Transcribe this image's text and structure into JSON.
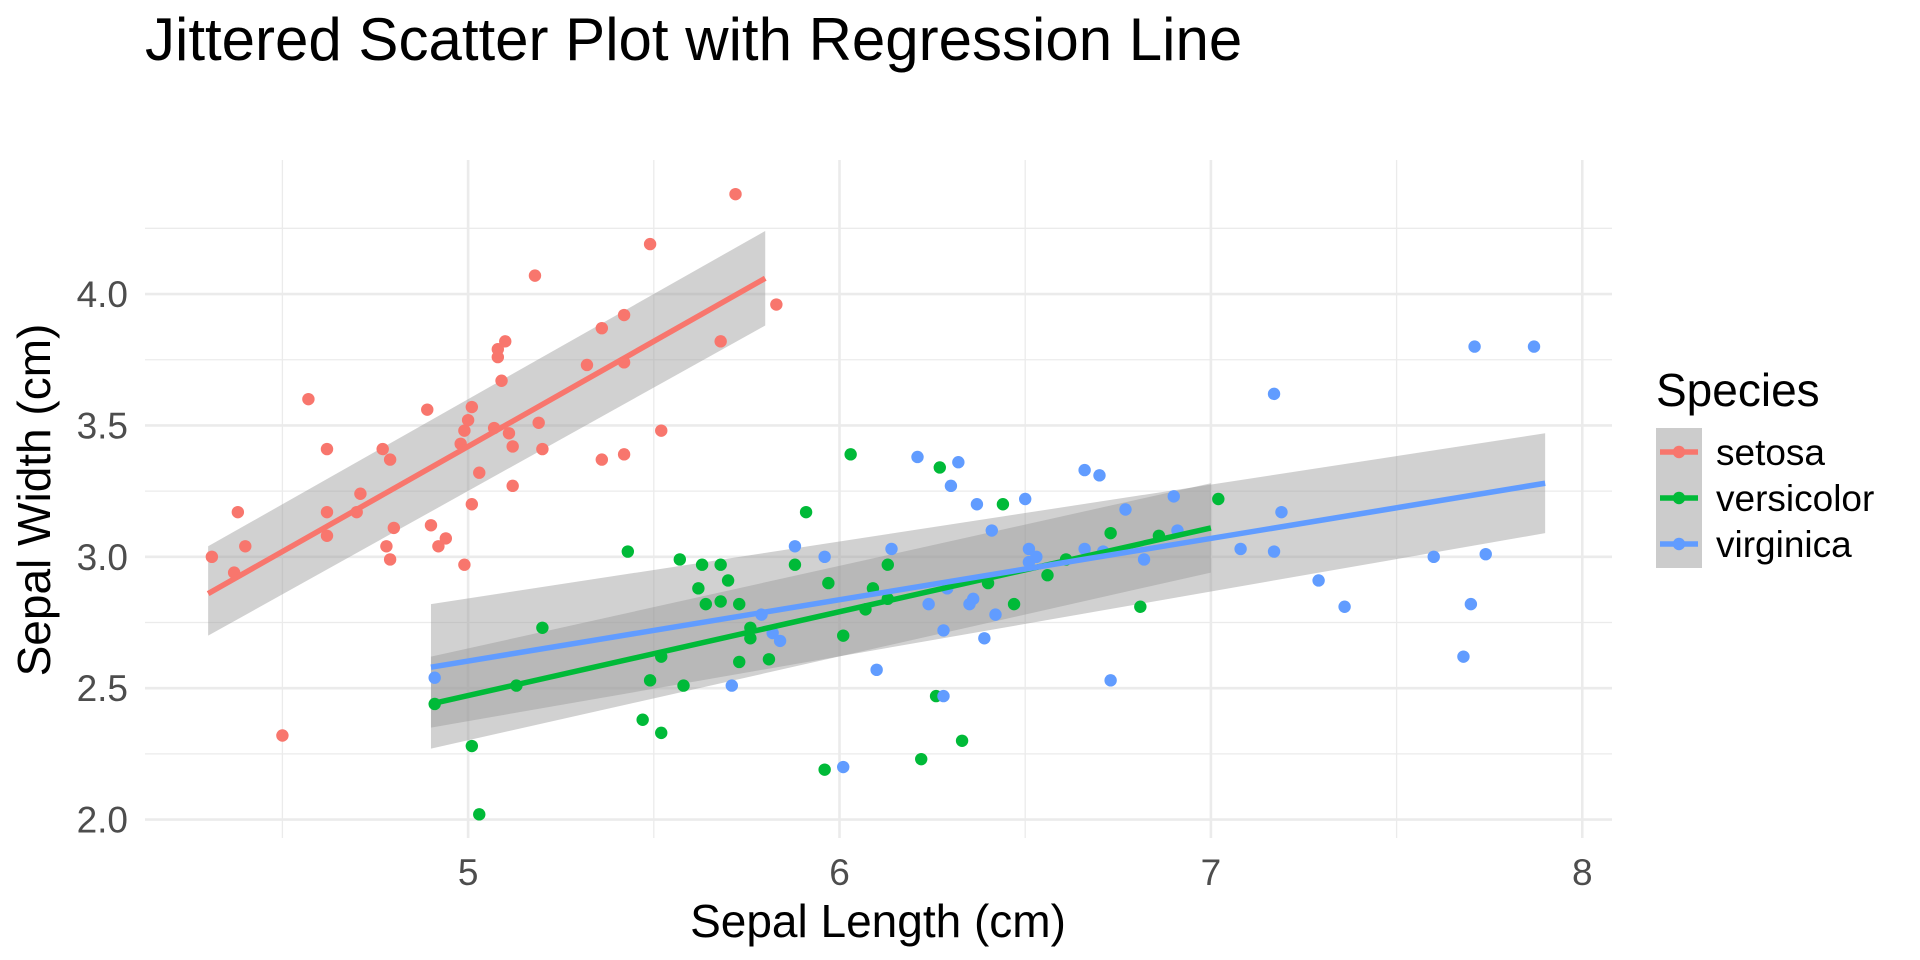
{
  "chart_data": {
    "type": "scatter",
    "title": "Jittered Scatter Plot with Regression Line",
    "xlabel": "Sepal Length (cm)",
    "ylabel": "Sepal Width (cm)",
    "xlim": [
      4.13,
      8.08
    ],
    "ylim": [
      1.93,
      4.51
    ],
    "x_ticks": [
      5,
      6,
      7,
      8
    ],
    "x_tick_labels": [
      "5",
      "6",
      "7",
      "8"
    ],
    "y_ticks": [
      2.0,
      2.5,
      3.0,
      3.5,
      4.0
    ],
    "y_tick_labels": [
      "2.0",
      "2.5",
      "3.0",
      "3.5",
      "4.0"
    ],
    "x_minor_ticks": [
      4.5,
      5.5,
      6.5,
      7.5
    ],
    "y_minor_ticks": [
      2.25,
      2.75,
      3.25,
      3.75,
      4.25
    ],
    "grid": true,
    "legend": {
      "title": "Species",
      "position": "right",
      "entries": [
        "setosa",
        "versicolor",
        "virginica"
      ]
    },
    "series": [
      {
        "name": "setosa",
        "color": "#F8766D",
        "points": [
          [
            4.31,
            3.0
          ],
          [
            4.37,
            2.94
          ],
          [
            4.38,
            3.17
          ],
          [
            4.4,
            3.04
          ],
          [
            4.5,
            2.32
          ],
          [
            4.57,
            3.6
          ],
          [
            4.62,
            3.08
          ],
          [
            4.62,
            3.17
          ],
          [
            4.62,
            3.41
          ],
          [
            4.7,
            3.17
          ],
          [
            4.71,
            3.24
          ],
          [
            4.77,
            3.41
          ],
          [
            4.78,
            3.04
          ],
          [
            4.79,
            2.99
          ],
          [
            4.79,
            3.37
          ],
          [
            4.8,
            3.11
          ],
          [
            4.89,
            3.56
          ],
          [
            4.9,
            3.12
          ],
          [
            4.92,
            3.04
          ],
          [
            4.94,
            3.07
          ],
          [
            4.98,
            3.43
          ],
          [
            4.99,
            3.48
          ],
          [
            4.99,
            2.97
          ],
          [
            5.0,
            3.52
          ],
          [
            5.01,
            3.2
          ],
          [
            5.01,
            3.57
          ],
          [
            5.03,
            3.32
          ],
          [
            5.07,
            3.49
          ],
          [
            5.08,
            3.76
          ],
          [
            5.08,
            3.79
          ],
          [
            5.09,
            3.67
          ],
          [
            5.1,
            3.82
          ],
          [
            5.11,
            3.47
          ],
          [
            5.12,
            3.42
          ],
          [
            5.12,
            3.27
          ],
          [
            5.18,
            4.07
          ],
          [
            5.19,
            3.51
          ],
          [
            5.2,
            3.41
          ],
          [
            5.32,
            3.73
          ],
          [
            5.36,
            3.87
          ],
          [
            5.36,
            3.37
          ],
          [
            5.42,
            3.92
          ],
          [
            5.42,
            3.74
          ],
          [
            5.42,
            3.39
          ],
          [
            5.49,
            4.19
          ],
          [
            5.52,
            3.48
          ],
          [
            5.68,
            3.82
          ],
          [
            5.72,
            4.38
          ],
          [
            5.83,
            3.96
          ]
        ],
        "regression": {
          "x": [
            4.3,
            5.8
          ],
          "y": [
            2.86,
            4.06
          ],
          "ci_lower": [
            2.7,
            3.88
          ],
          "ci_upper": [
            3.04,
            4.24
          ]
        }
      },
      {
        "name": "versicolor",
        "color": "#00BA38",
        "points": [
          [
            4.91,
            2.44
          ],
          [
            5.01,
            2.28
          ],
          [
            5.03,
            2.02
          ],
          [
            5.13,
            2.51
          ],
          [
            5.2,
            2.73
          ],
          [
            5.43,
            3.02
          ],
          [
            5.47,
            2.38
          ],
          [
            5.49,
            2.53
          ],
          [
            5.52,
            2.33
          ],
          [
            5.52,
            2.62
          ],
          [
            5.57,
            2.99
          ],
          [
            5.58,
            2.51
          ],
          [
            5.62,
            2.88
          ],
          [
            5.63,
            2.97
          ],
          [
            5.64,
            2.82
          ],
          [
            5.68,
            2.83
          ],
          [
            5.68,
            2.97
          ],
          [
            5.7,
            2.91
          ],
          [
            5.73,
            2.6
          ],
          [
            5.73,
            2.82
          ],
          [
            5.76,
            2.69
          ],
          [
            5.76,
            2.73
          ],
          [
            5.81,
            2.61
          ],
          [
            5.88,
            2.97
          ],
          [
            5.91,
            3.17
          ],
          [
            5.96,
            2.19
          ],
          [
            5.97,
            2.9
          ],
          [
            6.01,
            2.7
          ],
          [
            6.03,
            3.39
          ],
          [
            6.07,
            2.8
          ],
          [
            6.09,
            2.88
          ],
          [
            6.13,
            2.84
          ],
          [
            6.13,
            2.97
          ],
          [
            6.22,
            2.23
          ],
          [
            6.26,
            2.47
          ],
          [
            6.27,
            3.34
          ],
          [
            6.33,
            2.3
          ],
          [
            6.4,
            2.9
          ],
          [
            6.44,
            3.2
          ],
          [
            6.47,
            2.82
          ],
          [
            6.56,
            2.93
          ],
          [
            6.61,
            2.99
          ],
          [
            6.73,
            3.09
          ],
          [
            6.81,
            2.81
          ],
          [
            6.86,
            3.08
          ],
          [
            7.02,
            3.22
          ]
        ],
        "regression": {
          "x": [
            4.9,
            7.0
          ],
          "y": [
            2.44,
            3.11
          ],
          "ci_lower": [
            2.27,
            2.94
          ],
          "ci_upper": [
            2.62,
            3.28
          ]
        }
      },
      {
        "name": "virginica",
        "color": "#619CFF",
        "points": [
          [
            4.91,
            2.54
          ],
          [
            5.71,
            2.51
          ],
          [
            5.79,
            2.78
          ],
          [
            5.82,
            2.71
          ],
          [
            5.84,
            2.68
          ],
          [
            5.88,
            3.04
          ],
          [
            5.96,
            3.0
          ],
          [
            6.01,
            2.2
          ],
          [
            6.1,
            2.57
          ],
          [
            6.14,
            3.03
          ],
          [
            6.21,
            3.38
          ],
          [
            6.24,
            2.82
          ],
          [
            6.28,
            2.47
          ],
          [
            6.28,
            2.72
          ],
          [
            6.29,
            2.88
          ],
          [
            6.3,
            3.27
          ],
          [
            6.32,
            3.36
          ],
          [
            6.35,
            2.82
          ],
          [
            6.36,
            2.84
          ],
          [
            6.37,
            3.2
          ],
          [
            6.39,
            2.69
          ],
          [
            6.41,
            3.1
          ],
          [
            6.42,
            2.78
          ],
          [
            6.5,
            3.22
          ],
          [
            6.51,
            3.03
          ],
          [
            6.51,
            2.98
          ],
          [
            6.53,
            3.0
          ],
          [
            6.66,
            3.33
          ],
          [
            6.66,
            3.03
          ],
          [
            6.7,
            3.31
          ],
          [
            6.71,
            3.02
          ],
          [
            6.73,
            2.53
          ],
          [
            6.77,
            3.18
          ],
          [
            6.82,
            2.99
          ],
          [
            6.9,
            3.23
          ],
          [
            6.91,
            3.1
          ],
          [
            7.08,
            3.03
          ],
          [
            7.17,
            3.62
          ],
          [
            7.17,
            3.02
          ],
          [
            7.19,
            3.17
          ],
          [
            7.29,
            2.91
          ],
          [
            7.36,
            2.81
          ],
          [
            7.6,
            3.0
          ],
          [
            7.68,
            2.62
          ],
          [
            7.7,
            2.82
          ],
          [
            7.71,
            3.8
          ],
          [
            7.74,
            3.01
          ],
          [
            7.87,
            3.8
          ]
        ],
        "regression": {
          "x": [
            4.9,
            7.9
          ],
          "y": [
            2.58,
            3.28
          ],
          "ci_lower": [
            2.35,
            3.09
          ],
          "ci_upper": [
            2.82,
            3.47
          ]
        }
      }
    ]
  }
}
